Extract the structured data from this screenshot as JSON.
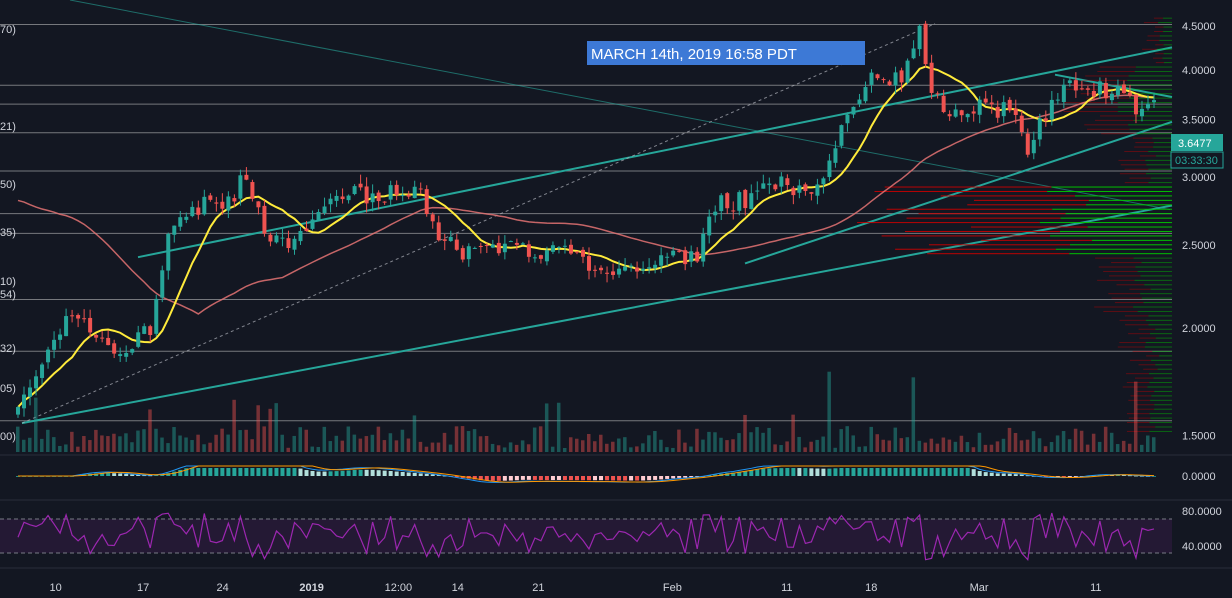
{
  "banner": {
    "text": "MARCH 14th, 2019 16:58 PDT",
    "color": "#3d79d6"
  },
  "price_tag": {
    "value": "3.6477",
    "countdown": "03:33:30",
    "color": "#26a69a"
  },
  "colors": {
    "background": "#131722",
    "up": "#26a69a",
    "down": "#ef5350",
    "ma_fast": "#ffeb3b",
    "ma_slow": "#e57373",
    "trendline": "#26a69a",
    "vp_up": "#00c800",
    "vp_down": "#cc0000",
    "rsi": "#9c27b0"
  },
  "left_labels": [
    "70)",
    "21)",
    "50)",
    "35)",
    "10)",
    "54)",
    "32)",
    "05)",
    "00)"
  ],
  "chart_data": [
    {
      "type": "candlestick",
      "yscale": "log",
      "ylim": [
        1.45,
        4.55
      ],
      "y_ticks": [
        "4.5000",
        "4.0000",
        "3.5000",
        "3.0000",
        "2.5000",
        "2.0000",
        "1.5000"
      ],
      "x_ticks": [
        "10",
        "17",
        "24",
        "2019",
        "12:00",
        "14",
        "21",
        "Feb",
        "11",
        "18",
        "Mar",
        "11"
      ],
      "horizontal_levels": [
        4.52,
        3.84,
        3.65,
        3.38,
        3.05,
        2.72,
        2.58,
        2.16,
        1.88,
        1.56
      ],
      "anchors": [
        [
          0,
          1.6
        ],
        [
          5,
          1.85
        ],
        [
          9,
          2.1
        ],
        [
          16,
          1.88
        ],
        [
          22,
          2.0
        ],
        [
          25,
          2.6
        ],
        [
          30,
          2.78
        ],
        [
          35,
          2.8
        ],
        [
          38,
          3.05
        ],
        [
          41,
          2.55
        ],
        [
          45,
          2.48
        ],
        [
          48,
          2.65
        ],
        [
          52,
          2.78
        ],
        [
          56,
          2.88
        ],
        [
          60,
          2.85
        ],
        [
          64,
          2.93
        ],
        [
          67,
          2.88
        ],
        [
          70,
          2.55
        ],
        [
          74,
          2.45
        ],
        [
          80,
          2.5
        ],
        [
          86,
          2.47
        ],
        [
          92,
          2.43
        ],
        [
          98,
          2.34
        ],
        [
          103,
          2.38
        ],
        [
          108,
          2.42
        ],
        [
          113,
          2.4
        ],
        [
          116,
          2.8
        ],
        [
          121,
          2.82
        ],
        [
          125,
          3.0
        ],
        [
          130,
          2.88
        ],
        [
          134,
          3.0
        ],
        [
          138,
          3.6
        ],
        [
          141,
          3.85
        ],
        [
          144,
          3.95
        ],
        [
          147,
          3.88
        ],
        [
          150,
          4.48
        ],
        [
          152,
          3.7
        ],
        [
          156,
          3.55
        ],
        [
          160,
          3.62
        ],
        [
          165,
          3.6
        ],
        [
          168,
          3.25
        ],
        [
          171,
          3.55
        ],
        [
          174,
          3.9
        ],
        [
          178,
          3.82
        ],
        [
          182,
          3.78
        ],
        [
          186,
          3.62
        ],
        [
          189,
          3.66
        ]
      ]
    },
    {
      "type": "line",
      "name": "",
      "values_range": [
        -0.05,
        0.05
      ],
      "y_ticks": [
        "0.0000"
      ]
    },
    {
      "type": "line",
      "name": "",
      "ylim": [
        20,
        100
      ],
      "y_ticks": [
        "80.0000",
        "40.0000"
      ],
      "bands": [
        70,
        30
      ]
    }
  ]
}
